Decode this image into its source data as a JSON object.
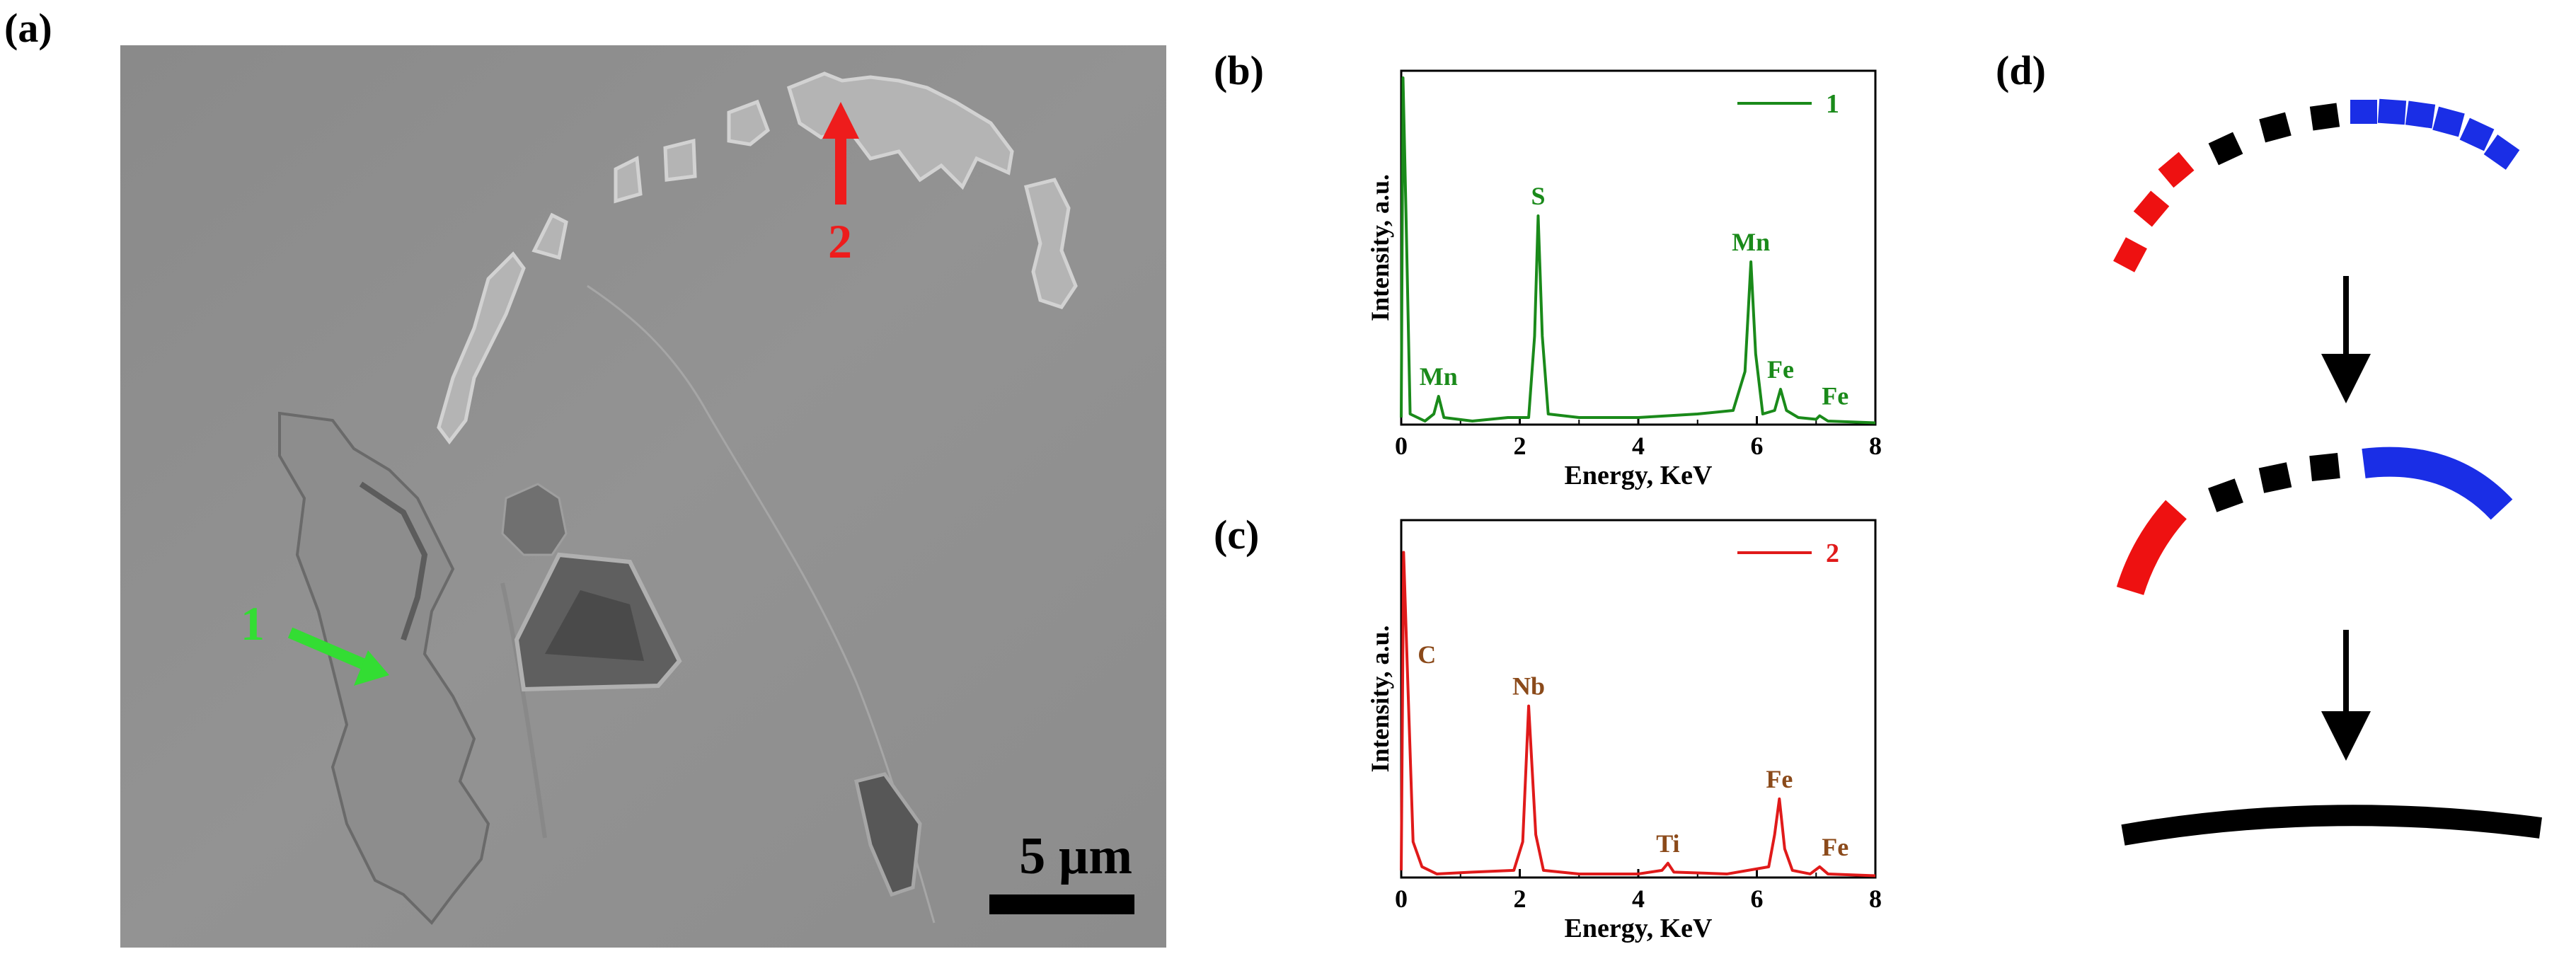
{
  "panels": {
    "a_label": "(a)",
    "b_label": "(b)",
    "c_label": "(c)",
    "d_label": "(d)"
  },
  "sem": {
    "arrow1_label": "1",
    "arrow2_label": "2",
    "scale_bar_label": "5 µm",
    "colors": {
      "arrow1": "#33dd33",
      "arrow2": "#ee1c1c",
      "background": "#8e8e8e"
    }
  },
  "chart_data": [
    {
      "id": "b",
      "type": "line",
      "xlabel": "Energy, KeV",
      "ylabel": "Intensity, a.u.",
      "xlim": [
        0,
        8
      ],
      "ylim": [
        0,
        100
      ],
      "xticks": [
        "0",
        "2",
        "4",
        "6",
        "8"
      ],
      "legend": "top-right",
      "series": [
        {
          "name": "1",
          "color": "#1a8a1a",
          "points": [
            [
              0,
              2
            ],
            [
              0.03,
              98
            ],
            [
              0.08,
              60
            ],
            [
              0.15,
              3
            ],
            [
              0.4,
              1
            ],
            [
              0.55,
              3
            ],
            [
              0.63,
              8
            ],
            [
              0.72,
              2
            ],
            [
              1.2,
              1
            ],
            [
              1.8,
              2
            ],
            [
              2.15,
              2
            ],
            [
              2.25,
              25
            ],
            [
              2.31,
              59
            ],
            [
              2.38,
              25
            ],
            [
              2.48,
              3
            ],
            [
              3.0,
              2
            ],
            [
              4.0,
              2
            ],
            [
              5.0,
              3
            ],
            [
              5.6,
              4
            ],
            [
              5.8,
              15
            ],
            [
              5.9,
              46
            ],
            [
              5.98,
              20
            ],
            [
              6.1,
              3
            ],
            [
              6.3,
              4
            ],
            [
              6.4,
              10
            ],
            [
              6.5,
              4
            ],
            [
              6.7,
              2
            ],
            [
              7.0,
              1.5
            ],
            [
              7.06,
              2.5
            ],
            [
              7.2,
              1
            ],
            [
              8,
              0.5
            ]
          ]
        }
      ],
      "annotations": [
        {
          "text": "S",
          "x": 2.31,
          "y": 59
        },
        {
          "text": "Mn",
          "x": 0.63,
          "y": 8
        },
        {
          "text": "Mn",
          "x": 5.9,
          "y": 46
        },
        {
          "text": "Fe",
          "x": 6.4,
          "y": 10
        },
        {
          "text": "Fe",
          "x": 7.06,
          "y": 2.5
        }
      ]
    },
    {
      "id": "c",
      "type": "line",
      "xlabel": "Energy, KeV",
      "ylabel": "Intensity, a.u.",
      "xlim": [
        0,
        8
      ],
      "ylim": [
        0,
        100
      ],
      "xticks": [
        "0",
        "2",
        "4",
        "6",
        "8"
      ],
      "legend": "top-right",
      "series": [
        {
          "name": "2",
          "color": "#e01a1a",
          "points": [
            [
              0,
              2
            ],
            [
              0.04,
              91
            ],
            [
              0.1,
              60
            ],
            [
              0.2,
              10
            ],
            [
              0.35,
              3
            ],
            [
              0.6,
              1
            ],
            [
              1.2,
              1.5
            ],
            [
              1.9,
              2
            ],
            [
              2.05,
              10
            ],
            [
              2.15,
              48
            ],
            [
              2.27,
              12
            ],
            [
              2.4,
              2
            ],
            [
              3.0,
              1
            ],
            [
              4.0,
              1
            ],
            [
              4.4,
              2
            ],
            [
              4.5,
              4
            ],
            [
              4.6,
              1.5
            ],
            [
              5.5,
              1
            ],
            [
              6.2,
              3
            ],
            [
              6.3,
              12
            ],
            [
              6.38,
              22
            ],
            [
              6.47,
              8
            ],
            [
              6.6,
              2
            ],
            [
              6.9,
              1
            ],
            [
              7.06,
              3
            ],
            [
              7.2,
              1
            ],
            [
              8,
              0.5
            ]
          ]
        }
      ],
      "annotations": [
        {
          "text": "C",
          "x": 0.25,
          "y": 60
        },
        {
          "text": "Nb",
          "x": 2.15,
          "y": 48
        },
        {
          "text": "Ti",
          "x": 4.5,
          "y": 4
        },
        {
          "text": "Fe",
          "x": 6.38,
          "y": 22
        },
        {
          "text": "Fe",
          "x": 7.06,
          "y": 3
        }
      ]
    }
  ],
  "diagram": {
    "colors": {
      "red": "#ee1111",
      "black": "#000000",
      "blue": "#1a2ee6"
    }
  }
}
